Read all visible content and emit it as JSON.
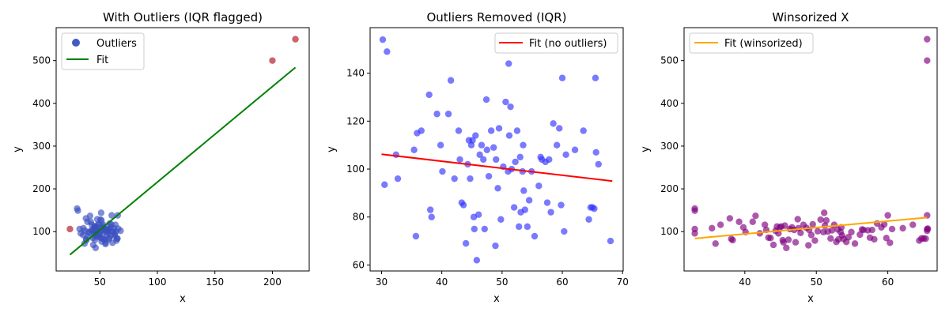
{
  "figure": {
    "background": "#ffffff"
  },
  "chart_data": [
    {
      "type": "scatter",
      "title": "With Outliers (IQR flagged)",
      "xlabel": "x",
      "ylabel": "y",
      "xlim": [
        12,
        232
      ],
      "ylim": [
        8,
        577
      ],
      "xticks": [
        50,
        100,
        150,
        200
      ],
      "yticks": [
        100,
        200,
        300,
        400,
        500
      ],
      "grid": false,
      "legend": {
        "placement": "top-left",
        "entries": [
          {
            "label": "Outliers",
            "kind": "marker",
            "color": "#3a50c0"
          },
          {
            "label": "Fit",
            "kind": "line",
            "color": "#008000"
          }
        ]
      },
      "series": [
        {
          "name": "Outliers",
          "kind": "scatter",
          "color": "#3a50c0",
          "x": [
            30.2,
            30.9,
            32.4,
            33.4,
            35.7,
            36.6,
            37.9,
            38.1,
            38.3,
            39.2,
            40.1,
            41.5,
            42.1,
            43.0,
            43.6,
            44.0,
            44.3,
            44.7,
            44.9,
            45.3,
            45.6,
            45.8,
            46.3,
            46.6,
            47.1,
            47.4,
            47.8,
            48.2,
            48.6,
            49.0,
            49.5,
            50.2,
            50.6,
            51.1,
            51.4,
            52.0,
            52.5,
            53.0,
            53.4,
            53.8,
            54.2,
            54.9,
            55.4,
            56.1,
            56.6,
            57.2,
            57.8,
            58.5,
            59.1,
            59.8,
            60.3,
            61.0,
            62.1,
            63.5,
            64.4,
            65.0,
            65.3,
            65.5,
            66.0,
            68.0,
            45.0,
            46.5,
            48.0,
            49.8,
            51.5,
            53.2,
            55.0,
            56.8,
            58.2,
            60.5,
            62.8,
            64.0,
            35.5,
            37.0,
            39.5,
            41.0,
            42.5,
            47.5,
            50.5,
            52.8,
            54.5,
            57.5,
            59.5,
            61.8,
            63.0
          ],
          "y": [
            154,
            149,
            106,
            96,
            108,
            72,
            131,
            83,
            80,
            123,
            99,
            137,
            123,
            116,
            104,
            85,
            69,
            102,
            96,
            112,
            112,
            81,
            62,
            110,
            106,
            104,
            129,
            116,
            109,
            117,
            92,
            101,
            128,
            144,
            126,
            84,
            103,
            116,
            110,
            105,
            99,
            71,
            105,
            93,
            104,
            103,
            82,
            119,
            110,
            117,
            138,
            74,
            108,
            116,
            79,
            84,
            84,
            138,
            107,
            102,
            100,
            90,
            88,
            95,
            77,
            83,
            74,
            98,
            85,
            101,
            94,
            100,
            92,
            102,
            88,
            97,
            103,
            95,
            86,
            112,
            81,
            106,
            91,
            98,
            90
          ],
          "marker": "circle"
        },
        {
          "name": "",
          "kind": "scatter",
          "color": "#b01020",
          "x": [
            24,
            200,
            220
          ],
          "y": [
            106,
            500,
            550
          ],
          "marker": "circle"
        },
        {
          "name": "Fit",
          "kind": "line",
          "color": "#008000",
          "x": [
            24,
            220
          ],
          "y": [
            46,
            484
          ]
        }
      ]
    },
    {
      "type": "scatter",
      "title": "Outliers Removed (IQR)",
      "xlabel": "x",
      "ylabel": "y",
      "xlim": [
        28.1,
        70.1
      ],
      "ylim": [
        57.5,
        159
      ],
      "xticks": [
        30,
        40,
        50,
        60,
        70
      ],
      "yticks": [
        60,
        80,
        100,
        120,
        140
      ],
      "grid": false,
      "legend": {
        "placement": "top-right",
        "entries": [
          {
            "label": "Fit (no outliers)",
            "kind": "line",
            "color": "#ff0000"
          }
        ]
      },
      "series": [
        {
          "name": "",
          "kind": "scatter",
          "color": "#3333ff",
          "x": [
            30.2,
            30.5,
            30.9,
            32.4,
            32.7,
            35.4,
            35.7,
            35.9,
            36.6,
            37.9,
            38.1,
            38.3,
            39.2,
            39.8,
            40.1,
            41.1,
            41.5,
            42.1,
            42.8,
            43.0,
            43.3,
            43.6,
            44.0,
            44.3,
            44.5,
            44.7,
            44.9,
            45.1,
            45.3,
            45.4,
            45.6,
            45.8,
            46.1,
            46.3,
            46.6,
            46.9,
            47.1,
            47.4,
            47.5,
            47.8,
            48.2,
            48.6,
            48.9,
            49.0,
            49.3,
            49.5,
            49.8,
            50.2,
            50.6,
            51.0,
            51.1,
            51.2,
            51.4,
            51.6,
            52.0,
            52.2,
            52.5,
            52.8,
            53.0,
            53.1,
            53.4,
            53.5,
            53.6,
            53.8,
            54.2,
            54.5,
            54.9,
            55.4,
            56.1,
            56.4,
            56.6,
            57.2,
            57.5,
            57.8,
            58.1,
            58.5,
            59.1,
            59.5,
            59.8,
            60.0,
            60.3,
            60.6,
            62.1,
            63.5,
            64.4,
            64.7,
            65.0,
            65.3,
            65.5,
            65.6,
            66.0,
            68.0
          ],
          "y": [
            154,
            93.5,
            149,
            106,
            96,
            108,
            72,
            115,
            116,
            131,
            83,
            80,
            123,
            110,
            99,
            123,
            137,
            96,
            116,
            104,
            86,
            85,
            69,
            102,
            112,
            96,
            110,
            112,
            80,
            75,
            114,
            62,
            81,
            106,
            110,
            104,
            75,
            129,
            108,
            97,
            116,
            109,
            68,
            104,
            92,
            117,
            79,
            101,
            128,
            99,
            144,
            114,
            126,
            100,
            84,
            103,
            116,
            76,
            105,
            82,
            99,
            110,
            91,
            83,
            76,
            87,
            99,
            72,
            93,
            105,
            104,
            103,
            86,
            104,
            82,
            119,
            110,
            117,
            85,
            138,
            74,
            106,
            108,
            116,
            79,
            84,
            84,
            83.5,
            138,
            107,
            102,
            70
          ],
          "marker": "circle"
        },
        {
          "name": "Fit (no outliers)",
          "kind": "line",
          "color": "#ff0000",
          "x": [
            30,
            68.3
          ],
          "y": [
            106.2,
            95
          ]
        }
      ]
    },
    {
      "type": "scatter",
      "title": "Winsorized X",
      "xlabel": "x",
      "ylabel": "y",
      "xlim": [
        31.5,
        66.9
      ],
      "ylim": [
        8,
        577
      ],
      "xticks": [
        40,
        50,
        60
      ],
      "yticks": [
        100,
        200,
        300,
        400,
        500
      ],
      "grid": false,
      "legend": {
        "placement": "top-left",
        "entries": [
          {
            "label": "Fit (winsorized)",
            "kind": "line",
            "color": "#ffa500"
          }
        ]
      },
      "series": [
        {
          "name": "",
          "kind": "scatter",
          "color": "#800080",
          "x": [
            33,
            33,
            33,
            33,
            35.4,
            35.9,
            36.6,
            37.9,
            38.1,
            38.3,
            39.2,
            39.8,
            40.1,
            41.1,
            41.5,
            42.1,
            42.8,
            43.0,
            43.3,
            43.6,
            44.0,
            44.3,
            44.5,
            44.7,
            44.9,
            45.1,
            45.3,
            45.4,
            45.6,
            45.8,
            46.1,
            46.3,
            46.6,
            46.9,
            47.1,
            47.4,
            47.5,
            47.8,
            48.2,
            48.6,
            48.9,
            49.0,
            49.3,
            49.5,
            49.8,
            50.2,
            50.6,
            51.0,
            51.1,
            51.2,
            51.4,
            51.6,
            52.0,
            52.2,
            52.5,
            52.8,
            53.0,
            53.1,
            53.4,
            53.5,
            53.6,
            53.8,
            54.2,
            54.5,
            54.9,
            55.4,
            56.1,
            56.4,
            56.6,
            57.2,
            57.5,
            57.8,
            58.1,
            58.5,
            59.1,
            59.5,
            59.8,
            60.0,
            60.3,
            60.6,
            62.1,
            63.5,
            64.4,
            64.7,
            65.0,
            65.3,
            65.5,
            65.6,
            65.5,
            65.5,
            65.5,
            65.5
          ],
          "y": [
            154,
            149,
            106,
            96,
            108,
            72,
            116,
            131,
            83,
            80,
            123,
            110,
            99,
            123,
            137,
            96,
            116,
            104,
            86,
            85,
            69,
            102,
            112,
            96,
            110,
            112,
            80,
            75,
            114,
            62,
            81,
            106,
            110,
            104,
            75,
            129,
            108,
            97,
            116,
            109,
            68,
            104,
            92,
            117,
            79,
            101,
            128,
            99,
            144,
            114,
            126,
            100,
            84,
            103,
            116,
            76,
            105,
            82,
            99,
            110,
            91,
            83,
            76,
            87,
            99,
            72,
            93,
            105,
            104,
            103,
            86,
            104,
            82,
            119,
            110,
            117,
            85,
            138,
            74,
            106,
            108,
            116,
            79,
            84,
            84,
            83.5,
            138,
            107,
            102,
            500,
            550,
            106
          ],
          "marker": "circle"
        },
        {
          "name": "Fit (winsorized)",
          "kind": "line",
          "color": "#ffa500",
          "x": [
            33,
            65.5
          ],
          "y": [
            84,
            133
          ]
        }
      ]
    }
  ]
}
